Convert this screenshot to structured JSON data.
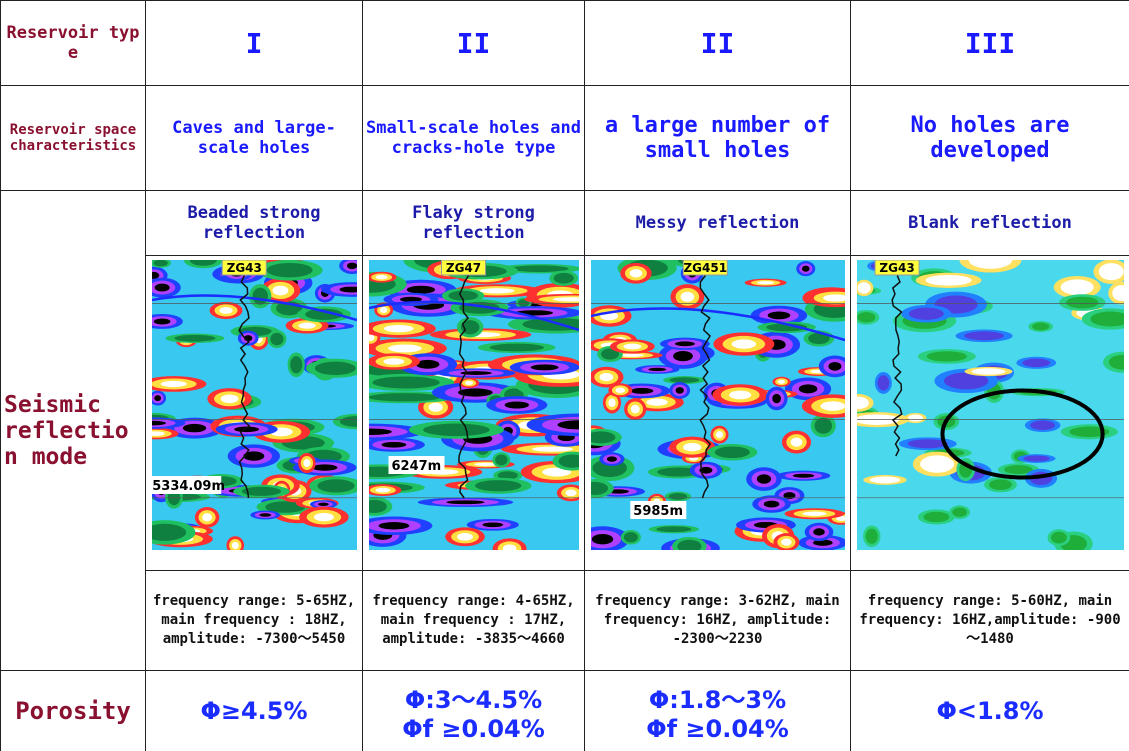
{
  "table": {
    "rows": [
      {
        "label": "Reservoir type",
        "cells": [
          "I",
          "II",
          "II",
          "III"
        ]
      },
      {
        "label": "Reservoir space characteristics",
        "cells": [
          "Caves and large-scale holes",
          "Small-scale holes and cracks-hole type",
          "a large number of small holes",
          "No holes are developed"
        ]
      },
      {
        "label": "Seismic reflection mode",
        "cells": [
          {
            "title": "Beaded strong reflection",
            "well": "ZG43",
            "depth": "5334.09m",
            "frequency": "frequency range: 5-65HZ, main frequency : 18HZ, amplitude: -7300～5450"
          },
          {
            "title": "Flaky strong reflection",
            "well": "ZG47",
            "depth": "6247m",
            "frequency": "frequency range: 4-65HZ, main frequency : 17HZ, amplitude: -3835～4660"
          },
          {
            "title": "Messy reflection",
            "well": "ZG451",
            "depth": "5985m",
            "frequency": "frequency range: 3-62HZ, main frequency: 16HZ, amplitude: -2300～2230"
          },
          {
            "title": "Blank reflection",
            "well": "ZG43",
            "frequency": "frequency range: 5-60HZ, main frequency: 16HZ,amplitude: -900～1480"
          }
        ]
      },
      {
        "label": "Porosity",
        "cells": [
          [
            "Φ≥4.5%"
          ],
          [
            "Φ:3～4.5%",
            "Φf ≥0.04%"
          ],
          [
            "Φ:1.8～3%",
            "Φf ≥0.04%"
          ],
          [
            "Φ<1.8%"
          ]
        ]
      }
    ]
  }
}
